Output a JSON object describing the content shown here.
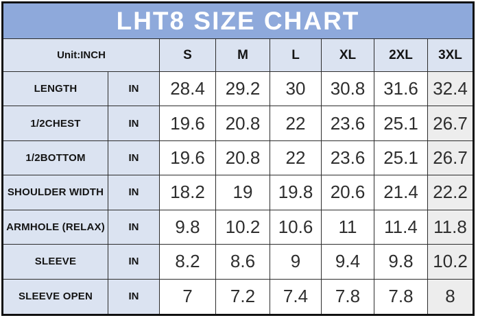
{
  "colors": {
    "title_bg": "#8ea9db",
    "header_bg": "#dbe3f1",
    "highlight_col_bg": "#ededed",
    "border": "#101010",
    "title_text": "#ffffff"
  },
  "table": {
    "title": "LHT8 SIZE CHART",
    "unit_label": "Unit:INCH",
    "sizes": [
      "S",
      "M",
      "L",
      "XL",
      "2XL",
      "3XL"
    ],
    "rows": [
      {
        "label": "LENGTH",
        "unit": "IN",
        "values": [
          "28.4",
          "29.2",
          "30",
          "30.8",
          "31.6",
          "32.4"
        ]
      },
      {
        "label": "1/2CHEST",
        "unit": "IN",
        "values": [
          "19.6",
          "20.8",
          "22",
          "23.6",
          "25.1",
          "26.7"
        ]
      },
      {
        "label": "1/2BOTTOM",
        "unit": "IN",
        "values": [
          "19.6",
          "20.8",
          "22",
          "23.6",
          "25.1",
          "26.7"
        ]
      },
      {
        "label": "SHOULDER WIDTH",
        "unit": "IN",
        "values": [
          "18.2",
          "19",
          "19.8",
          "20.6",
          "21.4",
          "22.2"
        ]
      },
      {
        "label": "ARMHOLE (RELAX)",
        "unit": "IN",
        "values": [
          "9.8",
          "10.2",
          "10.6",
          "11",
          "11.4",
          "11.8"
        ]
      },
      {
        "label": "SLEEVE",
        "unit": "IN",
        "values": [
          "8.2",
          "8.6",
          "9",
          "9.4",
          "9.8",
          "10.2"
        ]
      },
      {
        "label": "SLEEVE OPEN",
        "unit": "IN",
        "values": [
          "7",
          "7.2",
          "7.4",
          "7.8",
          "7.8",
          "8"
        ]
      }
    ]
  },
  "chart_data": {
    "type": "table",
    "title": "LHT8 SIZE CHART",
    "unit": "INCH",
    "columns": [
      "S",
      "M",
      "L",
      "XL",
      "2XL",
      "3XL"
    ],
    "rows": [
      {
        "measurement": "LENGTH",
        "values": [
          28.4,
          29.2,
          30,
          30.8,
          31.6,
          32.4
        ]
      },
      {
        "measurement": "1/2CHEST",
        "values": [
          19.6,
          20.8,
          22,
          23.6,
          25.1,
          26.7
        ]
      },
      {
        "measurement": "1/2BOTTOM",
        "values": [
          19.6,
          20.8,
          22,
          23.6,
          25.1,
          26.7
        ]
      },
      {
        "measurement": "SHOULDER WIDTH",
        "values": [
          18.2,
          19,
          19.8,
          20.6,
          21.4,
          22.2
        ]
      },
      {
        "measurement": "ARMHOLE (RELAX)",
        "values": [
          9.8,
          10.2,
          10.6,
          11,
          11.4,
          11.8
        ]
      },
      {
        "measurement": "SLEEVE",
        "values": [
          8.2,
          8.6,
          9,
          9.4,
          9.8,
          10.2
        ]
      },
      {
        "measurement": "SLEEVE OPEN",
        "values": [
          7,
          7.2,
          7.4,
          7.8,
          7.8,
          8
        ]
      }
    ],
    "layout": {
      "highlighted_column": "3XL",
      "header_fill": "#dbe3f1",
      "title_fill": "#8ea9db"
    }
  }
}
